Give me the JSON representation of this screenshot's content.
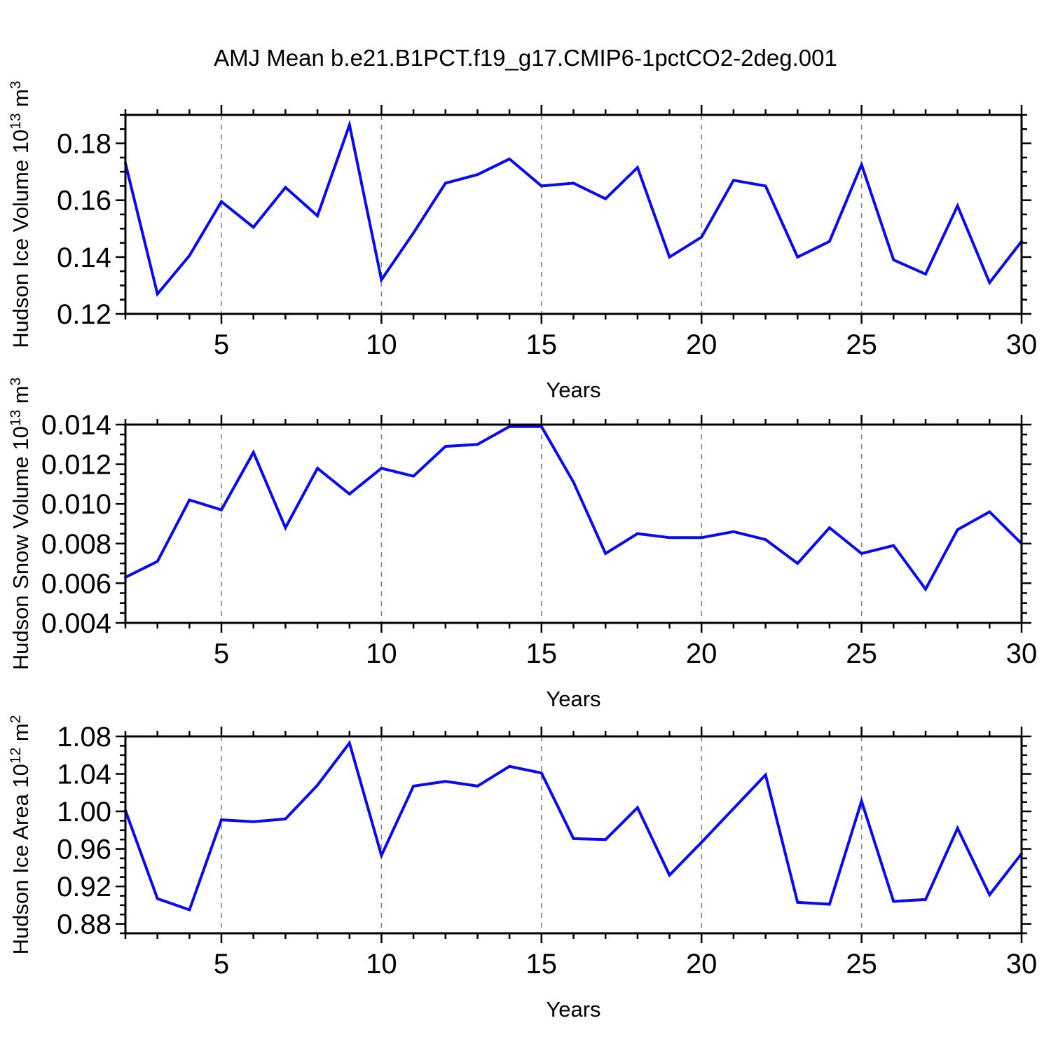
{
  "title": "AMJ Mean b.e21.B1PCT.f19_g17.CMIP6-1pctCO2-2deg.001",
  "colors": {
    "line": "#0a0aee",
    "axis": "#000000",
    "grid": "#7f7f7f",
    "background": "#ffffff",
    "text": "#000000"
  },
  "chart_data": [
    {
      "type": "line",
      "name": "hudson-ice-volume",
      "ylabel": "Hudson Ice Volume 10^13 m^3",
      "ylabel_parts": [
        {
          "t": "Hudson Ice Volume 10"
        },
        {
          "t": "13",
          "sup": true
        },
        {
          "t": " m"
        },
        {
          "t": "3",
          "sup": true
        }
      ],
      "xlabel": "Years",
      "x": [
        2,
        3,
        4,
        5,
        6,
        7,
        8,
        9,
        10,
        11,
        12,
        13,
        14,
        15,
        16,
        17,
        18,
        19,
        20,
        21,
        22,
        23,
        24,
        25,
        26,
        27,
        28,
        29,
        30
      ],
      "values": [
        0.173,
        0.127,
        0.1405,
        0.1595,
        0.1505,
        0.1645,
        0.1545,
        0.1865,
        0.132,
        0.1485,
        0.166,
        0.169,
        0.1745,
        0.165,
        0.166,
        0.1605,
        0.1715,
        0.14,
        0.147,
        0.167,
        0.165,
        0.14,
        0.1455,
        0.1725,
        0.139,
        0.134,
        0.158,
        0.131,
        0.1455
      ],
      "xlim": [
        2,
        30
      ],
      "ylim": [
        0.12,
        0.19
      ],
      "xticks_major": [
        5,
        10,
        15,
        20,
        25,
        30
      ],
      "xticks_minor_step": 1,
      "yticks_major": [
        0.12,
        0.14,
        0.16,
        0.18
      ],
      "ytick_labels": [
        "0.12",
        "0.14",
        "0.16",
        "0.18"
      ],
      "yticks_minor_step": 0.005,
      "grid_x": [
        5,
        10,
        15,
        20,
        25
      ],
      "grid": "vertical-dashed",
      "legend": null
    },
    {
      "type": "line",
      "name": "hudson-snow-volume",
      "ylabel": "Hudson Snow Volume 10^13 m^3",
      "ylabel_parts": [
        {
          "t": "Hudson Snow Volume 10"
        },
        {
          "t": "13",
          "sup": true
        },
        {
          "t": " m"
        },
        {
          "t": "3",
          "sup": true
        }
      ],
      "xlabel": "Years",
      "x": [
        2,
        3,
        4,
        5,
        6,
        7,
        8,
        9,
        10,
        11,
        12,
        13,
        14,
        15,
        16,
        17,
        18,
        19,
        20,
        21,
        22,
        23,
        24,
        25,
        26,
        27,
        28,
        29,
        30
      ],
      "values": [
        0.0063,
        0.0071,
        0.0102,
        0.0097,
        0.0126,
        0.0088,
        0.0118,
        0.0105,
        0.0118,
        0.0114,
        0.0129,
        0.013,
        0.0139,
        0.0139,
        0.0111,
        0.0075,
        0.0085,
        0.0083,
        0.0083,
        0.0086,
        0.0082,
        0.007,
        0.0088,
        0.0075,
        0.0079,
        0.0057,
        0.0087,
        0.0096,
        0.008
      ],
      "xlim": [
        2,
        30
      ],
      "ylim": [
        0.004,
        0.014
      ],
      "xticks_major": [
        5,
        10,
        15,
        20,
        25,
        30
      ],
      "xticks_minor_step": 1,
      "yticks_major": [
        0.004,
        0.006,
        0.008,
        0.01,
        0.012,
        0.014
      ],
      "ytick_labels": [
        "0.004",
        "0.006",
        "0.008",
        "0.010",
        "0.012",
        "0.014"
      ],
      "yticks_minor_step": 0.0005,
      "grid_x": [
        5,
        10,
        15,
        20,
        25
      ],
      "grid": "vertical-dashed",
      "legend": null
    },
    {
      "type": "line",
      "name": "hudson-ice-area",
      "ylabel": "Hudson Ice Area 10^12 m^2",
      "ylabel_parts": [
        {
          "t": "Hudson Ice Area 10"
        },
        {
          "t": "12",
          "sup": true
        },
        {
          "t": " m"
        },
        {
          "t": "2",
          "sup": true
        }
      ],
      "xlabel": "Years",
      "x": [
        2,
        3,
        4,
        5,
        6,
        7,
        8,
        9,
        10,
        11,
        12,
        13,
        14,
        15,
        16,
        17,
        18,
        19,
        20,
        21,
        22,
        23,
        24,
        25,
        26,
        27,
        28,
        29,
        30
      ],
      "values": [
        1.001,
        0.907,
        0.895,
        0.991,
        0.989,
        0.992,
        1.028,
        1.073,
        0.953,
        1.027,
        1.032,
        1.027,
        1.048,
        1.041,
        0.971,
        0.97,
        1.004,
        0.932,
        0.967,
        1.003,
        1.039,
        0.903,
        0.901,
        1.011,
        0.904,
        0.906,
        0.982,
        0.911,
        0.955
      ],
      "xlim": [
        2,
        30
      ],
      "ylim": [
        0.87,
        1.08
      ],
      "xticks_major": [
        5,
        10,
        15,
        20,
        25,
        30
      ],
      "xticks_minor_step": 1,
      "yticks_major": [
        0.88,
        0.92,
        0.96,
        1.0,
        1.04,
        1.08
      ],
      "ytick_labels": [
        "0.88",
        "0.92",
        "0.96",
        "1.00",
        "1.04",
        "1.08"
      ],
      "yticks_minor_step": 0.01,
      "grid_x": [
        5,
        10,
        15,
        20,
        25
      ],
      "grid": "vertical-dashed",
      "legend": null
    }
  ]
}
